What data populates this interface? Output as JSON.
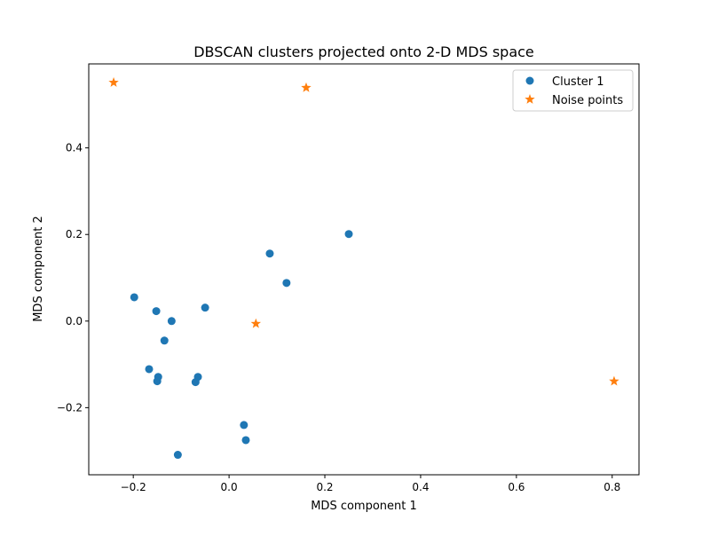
{
  "chart_data": {
    "type": "scatter",
    "title": "DBSCAN clusters projected onto 2-D MDS space",
    "xlabel": "MDS component 1",
    "ylabel": "MDS component 2",
    "xlim": [
      -0.293,
      0.856
    ],
    "ylim": [
      -0.355,
      0.594
    ],
    "xticks": [
      -0.2,
      0.0,
      0.2,
      0.4,
      0.6,
      0.8
    ],
    "xtick_labels": [
      "−0.2",
      "0.0",
      "0.2",
      "0.4",
      "0.6",
      "0.8"
    ],
    "yticks": [
      -0.2,
      0.0,
      0.2,
      0.4
    ],
    "ytick_labels": [
      "−0.2",
      "0.0",
      "0.2",
      "0.4"
    ],
    "grid": false,
    "legend_position": "top-right",
    "series": [
      {
        "name": "Cluster 1",
        "marker": "circle",
        "color": "#1f77b4",
        "points": [
          [
            -0.198,
            0.055
          ],
          [
            -0.152,
            0.023
          ],
          [
            -0.12,
            0.0
          ],
          [
            -0.135,
            -0.045
          ],
          [
            -0.05,
            0.031
          ],
          [
            -0.167,
            -0.111
          ],
          [
            -0.148,
            -0.129
          ],
          [
            -0.15,
            -0.139
          ],
          [
            -0.065,
            -0.129
          ],
          [
            -0.07,
            -0.141
          ],
          [
            0.031,
            -0.24
          ],
          [
            0.035,
            -0.275
          ],
          [
            -0.107,
            -0.309
          ],
          [
            0.085,
            0.156
          ],
          [
            0.12,
            0.088
          ],
          [
            0.25,
            0.201
          ]
        ]
      },
      {
        "name": "Noise points",
        "marker": "star",
        "color": "#ff7f0e",
        "points": [
          [
            -0.241,
            0.551
          ],
          [
            0.161,
            0.539
          ],
          [
            0.056,
            -0.006
          ],
          [
            0.804,
            -0.139
          ]
        ]
      }
    ]
  }
}
